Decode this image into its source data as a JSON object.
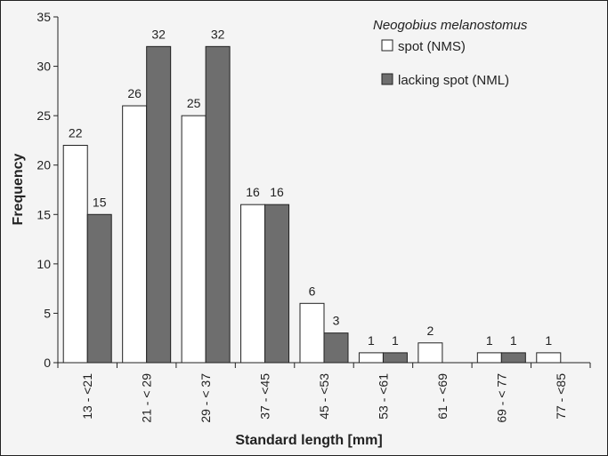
{
  "chart_data": {
    "type": "bar",
    "title": "",
    "xlabel": "Standard length [mm]",
    "ylabel": "Frequency",
    "ylim": [
      0,
      35
    ],
    "yticks": [
      0,
      5,
      10,
      15,
      20,
      25,
      30,
      35
    ],
    "grid": false,
    "legend": {
      "position": "top-right",
      "title": "Neogobius melanostomus"
    },
    "categories": [
      "13 - <21",
      "21 - < 29",
      "29 - < 37",
      "37 - <45",
      "45 - <53",
      "53 - <61",
      "61 - <69",
      "69 - < 77",
      "77 - <85"
    ],
    "series": [
      {
        "name": "spot (NMS)",
        "color": "#ffffff",
        "values": [
          22,
          26,
          25,
          16,
          6,
          1,
          2,
          1,
          1
        ]
      },
      {
        "name": "lacking spot (NML)",
        "color": "#6e6e6e",
        "values": [
          15,
          32,
          32,
          16,
          3,
          1,
          0,
          1,
          0
        ]
      }
    ],
    "data_labels": [
      [
        "22",
        "26",
        "25",
        "16",
        "6",
        "1",
        "2",
        "1",
        "1"
      ],
      [
        "15",
        "32",
        "32",
        "16",
        "3",
        "1",
        "",
        "1",
        ""
      ]
    ]
  }
}
